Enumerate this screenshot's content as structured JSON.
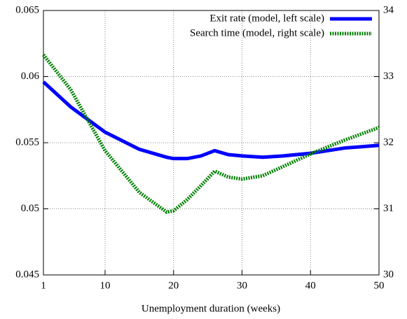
{
  "chart_data": {
    "type": "line",
    "xlabel": "Unemployment duration (weeks)",
    "x": [
      1,
      5,
      10,
      15,
      19,
      20,
      22,
      24,
      26,
      28,
      30,
      33,
      36,
      40,
      45,
      50
    ],
    "series": [
      {
        "name": "Exit rate (model, left scale)",
        "color": "#0000ff",
        "dash": "solid",
        "axis": "y",
        "values": [
          0.0596,
          0.0577,
          0.0558,
          0.0545,
          0.0539,
          0.0538,
          0.0538,
          0.054,
          0.0544,
          0.0541,
          0.054,
          0.0539,
          0.054,
          0.0542,
          0.0546,
          0.0548
        ]
      },
      {
        "name": "Search time (model, right scale)",
        "color": "#008000",
        "dash": "dotted",
        "axis": "y2",
        "values": [
          33.33,
          32.8,
          31.88,
          31.25,
          30.95,
          30.97,
          31.14,
          31.35,
          31.57,
          31.48,
          31.45,
          31.5,
          31.64,
          31.83,
          32.04,
          32.23
        ]
      }
    ],
    "xlim": [
      1,
      50
    ],
    "xticks": [
      1,
      10,
      20,
      30,
      40,
      50
    ],
    "ylim": [
      0.045,
      0.065
    ],
    "yticks": [
      0.045,
      0.05,
      0.055,
      0.06,
      0.065
    ],
    "y2lim": [
      30,
      34
    ],
    "y2ticks": [
      30,
      31,
      32,
      33,
      34
    ],
    "grid": true,
    "legend": "top-right"
  }
}
